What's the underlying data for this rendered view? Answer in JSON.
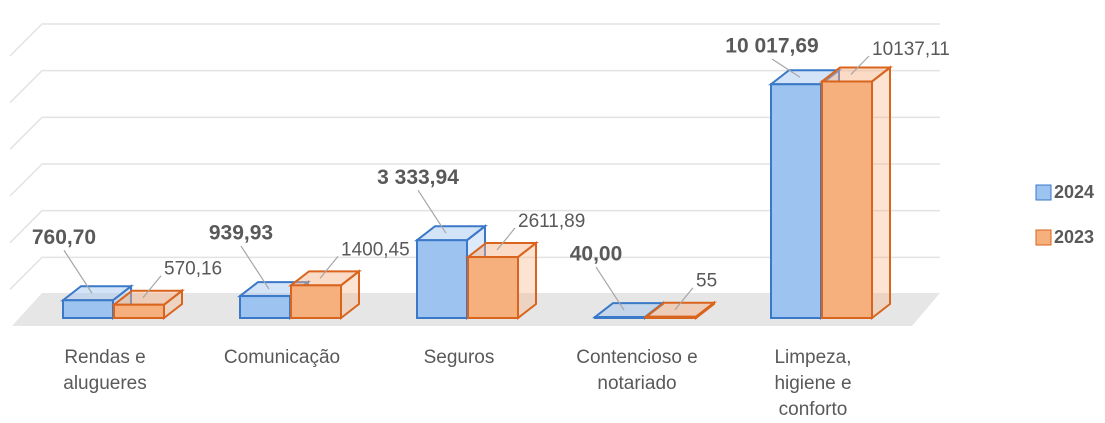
{
  "chart_data": {
    "type": "bar3d",
    "categories": [
      "Rendas e alugueres",
      "Comunicação",
      "Seguros",
      "Contencioso e notariado",
      "Limpeza, higiene e conforto"
    ],
    "series": [
      {
        "name": "2024",
        "color": "#9dc3f0",
        "values": [
          760.7,
          939.93,
          3333.94,
          40.0,
          10017.69
        ],
        "value_labels": [
          "760,70",
          "939,93",
          "3 333,94",
          "40,00",
          "10 017,69"
        ]
      },
      {
        "name": "2023",
        "color": "#f6b07e",
        "values": [
          570.16,
          1400.45,
          2611.89,
          55,
          10137.11
        ],
        "value_labels": [
          "570,16",
          "1400,45",
          "2611,89",
          "55",
          "10137,11"
        ]
      }
    ],
    "ylim": [
      0,
      12000
    ],
    "yticks": [
      0,
      2000,
      4000,
      6000,
      8000,
      10000,
      12000
    ],
    "grid": true,
    "legend": "right"
  }
}
